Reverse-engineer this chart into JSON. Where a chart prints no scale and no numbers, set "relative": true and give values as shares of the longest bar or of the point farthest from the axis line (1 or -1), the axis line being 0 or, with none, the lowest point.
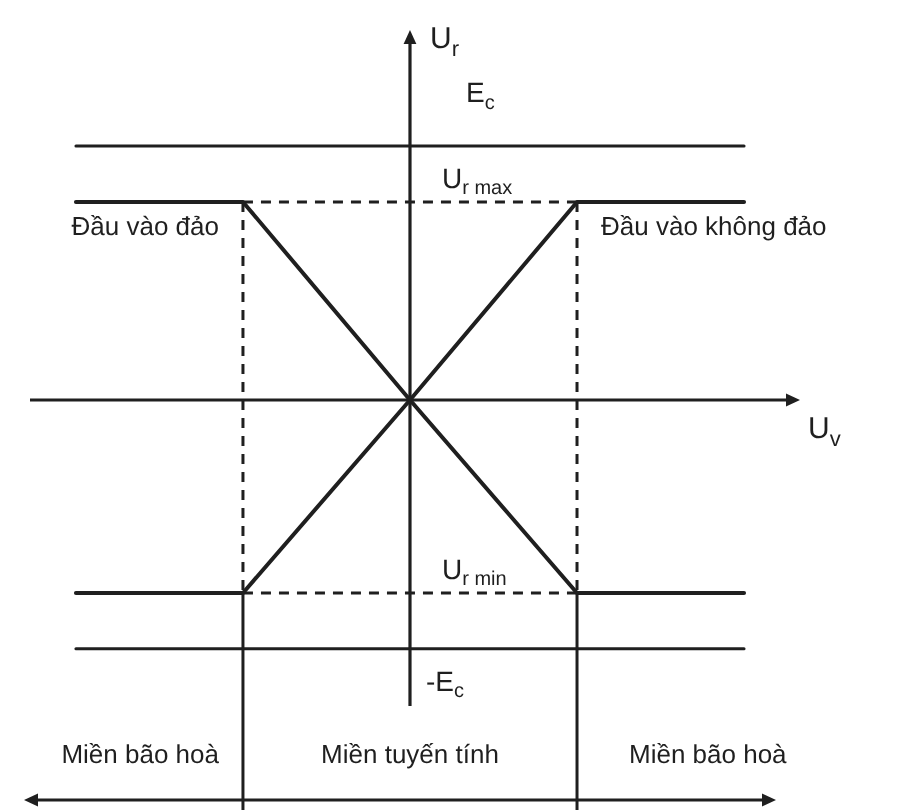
{
  "chart_data": {
    "type": "line",
    "relative": true,
    "xlabel": "U$_{v}$",
    "ylabel": "U$_{r}$",
    "categories": [
      null,
      null,
      null,
      null,
      null
    ],
    "tick_labels": false,
    "marker": "none",
    "series": [
      {
        "name": "Đầu vào đảo",
        "color": "#1f1f1f",
        "values": [
          0.78,
          0.78,
          0,
          -0.76,
          -0.76
        ]
      },
      {
        "name": "Đầu vào không đảo",
        "color": "#1f1f1f",
        "values": [
          -0.76,
          -0.76,
          0,
          0.78,
          0.78
        ]
      },
      {
        "name": "E$_{c}$",
        "color": "#1f1f1f",
        "values": [
          1,
          1,
          1,
          1,
          1
        ]
      },
      {
        "name": "U$_{r max}$",
        "color": "#1f1f1f",
        "line_style": "dashed",
        "values": [
          null,
          0.78,
          0.78,
          0.78,
          null
        ]
      },
      {
        "name": "U$_{r min}$",
        "color": "#1f1f1f",
        "line_style": "dashed",
        "values": [
          null,
          -0.76,
          -0.76,
          -0.76,
          null
        ]
      },
      {
        "name": "-E$_{c}$",
        "color": "#1f1f1f",
        "values": [
          -0.98,
          -0.98,
          -0.98,
          -0.98,
          -0.98
        ]
      }
    ],
    "annotations": [
      "Miền bão hoà",
      "Miền tuyến tính",
      "Miền bão hoà"
    ]
  }
}
